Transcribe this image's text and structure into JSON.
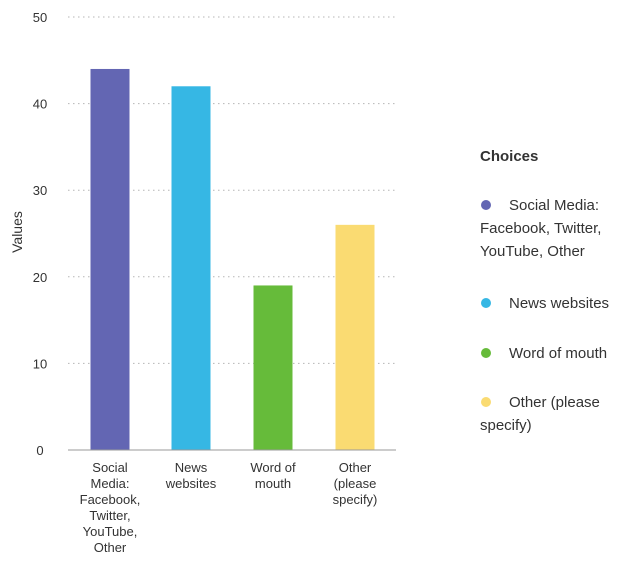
{
  "chart_data": {
    "type": "bar",
    "categories": [
      "Social Media: Facebook, Twitter, YouTube, Other",
      "News websites",
      "Word of mouth",
      "Other (please specify)"
    ],
    "category_tick_lines": [
      [
        "Social",
        "Media:",
        "Facebook,",
        "Twitter,",
        "YouTube,",
        "Other"
      ],
      [
        "News",
        "websites"
      ],
      [
        "Word of",
        "mouth"
      ],
      [
        "Other",
        "(please",
        "specify)"
      ]
    ],
    "values": [
      44,
      42,
      19,
      26
    ],
    "colors": [
      "#6366b3",
      "#36b7e4",
      "#66bb3a",
      "#fadb72"
    ],
    "ylabel": "Values",
    "xlabel": "",
    "ylim": [
      0,
      50
    ],
    "yticks": [
      0,
      10,
      20,
      30,
      40,
      50
    ],
    "grid": true,
    "legend": {
      "title": "Choices",
      "position": "right",
      "entry_lines": [
        [
          "Social Media:",
          "Facebook, Twitter,",
          "YouTube, Other"
        ],
        [
          "News websites"
        ],
        [
          "Word of mouth"
        ],
        [
          "Other (please",
          "specify)"
        ]
      ]
    },
    "axis_color": "#9a9a9a",
    "grid_color": "#b5b5b5",
    "text_color": "#333333"
  }
}
